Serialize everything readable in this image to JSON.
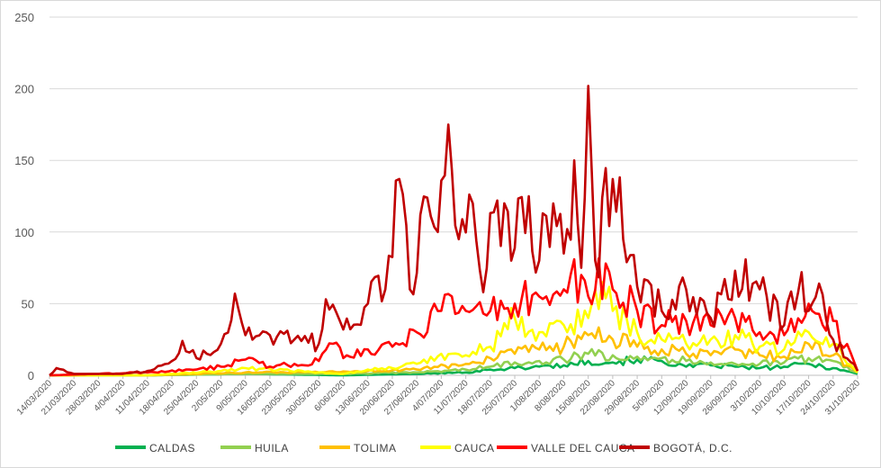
{
  "chart_data": {
    "type": "line",
    "title": "",
    "xlabel": "",
    "ylabel": "",
    "ylim": [
      0,
      250
    ],
    "yticks": [
      0,
      50,
      100,
      150,
      200,
      250
    ],
    "grid": "horizontal",
    "legend_position": "bottom",
    "start_date": "2020-03-14",
    "end_date": "2020-10-31",
    "x_tick_labels": [
      "14/03/2020",
      "21/03/2020",
      "28/03/2020",
      "4/04/2020",
      "11/04/2020",
      "18/04/2020",
      "25/04/2020",
      "2/05/2020",
      "9/05/2020",
      "16/05/2020",
      "23/05/2020",
      "30/05/2020",
      "6/06/2020",
      "13/06/2020",
      "20/06/2020",
      "27/06/2020",
      "4/07/2020",
      "11/07/2020",
      "18/07/2020",
      "25/07/2020",
      "1/08/2020",
      "8/08/2020",
      "15/08/2020",
      "22/08/2020",
      "29/08/2020",
      "5/09/2020",
      "12/09/2020",
      "19/09/2020",
      "26/09/2020",
      "3/10/2020",
      "10/10/2020",
      "17/10/2020",
      "24/10/2020",
      "31/10/2020"
    ],
    "series": [
      {
        "name": "CALDAS",
        "color": "#00b050",
        "points": [
          [
            "2020-03-14",
            0
          ],
          [
            "2020-04-11",
            0
          ],
          [
            "2020-05-09",
            1
          ],
          [
            "2020-06-06",
            0
          ],
          [
            "2020-06-27",
            1
          ],
          [
            "2020-07-11",
            2
          ],
          [
            "2020-07-18",
            4
          ],
          [
            "2020-07-25",
            5
          ],
          [
            "2020-08-01",
            6
          ],
          [
            "2020-08-08",
            7
          ],
          [
            "2020-08-15",
            10
          ],
          [
            "2020-08-22",
            9
          ],
          [
            "2020-08-29",
            11
          ],
          [
            "2020-09-05",
            10
          ],
          [
            "2020-09-12",
            6
          ],
          [
            "2020-09-19",
            7
          ],
          [
            "2020-09-26",
            6
          ],
          [
            "2020-10-03",
            5
          ],
          [
            "2020-10-10",
            6
          ],
          [
            "2020-10-17",
            8
          ],
          [
            "2020-10-24",
            5
          ],
          [
            "2020-10-31",
            1
          ]
        ]
      },
      {
        "name": "HUILA",
        "color": "#92d050",
        "points": [
          [
            "2020-03-14",
            0
          ],
          [
            "2020-04-11",
            0
          ],
          [
            "2020-05-09",
            1
          ],
          [
            "2020-06-06",
            1
          ],
          [
            "2020-06-27",
            2
          ],
          [
            "2020-07-11",
            4
          ],
          [
            "2020-07-18",
            6
          ],
          [
            "2020-07-25",
            9
          ],
          [
            "2020-08-01",
            10
          ],
          [
            "2020-08-08",
            11
          ],
          [
            "2020-08-15",
            15
          ],
          [
            "2020-08-22",
            14
          ],
          [
            "2020-08-29",
            13
          ],
          [
            "2020-09-05",
            12
          ],
          [
            "2020-09-12",
            10
          ],
          [
            "2020-09-19",
            9
          ],
          [
            "2020-09-26",
            8
          ],
          [
            "2020-10-03",
            8
          ],
          [
            "2020-10-10",
            9
          ],
          [
            "2020-10-17",
            12
          ],
          [
            "2020-10-24",
            10
          ],
          [
            "2020-10-31",
            2
          ]
        ]
      },
      {
        "name": "TOLIMA",
        "color": "#ffc000",
        "points": [
          [
            "2020-03-14",
            0
          ],
          [
            "2020-04-11",
            0
          ],
          [
            "2020-04-25",
            1
          ],
          [
            "2020-05-09",
            2
          ],
          [
            "2020-05-30",
            2
          ],
          [
            "2020-06-13",
            3
          ],
          [
            "2020-06-27",
            4
          ],
          [
            "2020-07-11",
            8
          ],
          [
            "2020-07-18",
            12
          ],
          [
            "2020-07-25",
            15
          ],
          [
            "2020-08-01",
            18
          ],
          [
            "2020-08-08",
            20
          ],
          [
            "2020-08-15",
            28
          ],
          [
            "2020-08-22",
            25
          ],
          [
            "2020-08-29",
            20
          ],
          [
            "2020-09-05",
            18
          ],
          [
            "2020-09-12",
            15
          ],
          [
            "2020-09-19",
            14
          ],
          [
            "2020-09-26",
            18
          ],
          [
            "2020-10-03",
            14
          ],
          [
            "2020-10-10",
            13
          ],
          [
            "2020-10-17",
            22
          ],
          [
            "2020-10-24",
            14
          ],
          [
            "2020-10-31",
            2
          ]
        ]
      },
      {
        "name": "CAUCA",
        "color": "#ffff00",
        "points": [
          [
            "2020-03-14",
            0
          ],
          [
            "2020-04-11",
            0
          ],
          [
            "2020-05-02",
            3
          ],
          [
            "2020-05-09",
            5
          ],
          [
            "2020-05-30",
            2
          ],
          [
            "2020-06-06",
            1
          ],
          [
            "2020-06-13",
            4
          ],
          [
            "2020-06-20",
            5
          ],
          [
            "2020-06-27",
            8
          ],
          [
            "2020-07-04",
            15
          ],
          [
            "2020-07-11",
            14
          ],
          [
            "2020-07-18",
            20
          ],
          [
            "2020-07-25",
            40
          ],
          [
            "2020-08-01",
            30
          ],
          [
            "2020-08-08",
            35
          ],
          [
            "2020-08-15",
            40
          ],
          [
            "2020-08-19",
            65
          ],
          [
            "2020-08-22",
            45
          ],
          [
            "2020-08-29",
            30
          ],
          [
            "2020-09-05",
            25
          ],
          [
            "2020-09-12",
            22
          ],
          [
            "2020-09-19",
            25
          ],
          [
            "2020-09-26",
            28
          ],
          [
            "2020-10-03",
            20
          ],
          [
            "2020-10-10",
            18
          ],
          [
            "2020-10-17",
            30
          ],
          [
            "2020-10-24",
            22
          ],
          [
            "2020-10-31",
            2
          ]
        ]
      },
      {
        "name": "VALLE DEL CAUCA",
        "color": "#ff0000",
        "points": [
          [
            "2020-03-14",
            0
          ],
          [
            "2020-03-28",
            1
          ],
          [
            "2020-04-11",
            2
          ],
          [
            "2020-04-25",
            4
          ],
          [
            "2020-05-02",
            6
          ],
          [
            "2020-05-09",
            11
          ],
          [
            "2020-05-16",
            6
          ],
          [
            "2020-05-23",
            8
          ],
          [
            "2020-05-30",
            10
          ],
          [
            "2020-06-03",
            22
          ],
          [
            "2020-06-06",
            12
          ],
          [
            "2020-06-13",
            18
          ],
          [
            "2020-06-20",
            20
          ],
          [
            "2020-06-27",
            30
          ],
          [
            "2020-07-04",
            45
          ],
          [
            "2020-07-11",
            45
          ],
          [
            "2020-07-18",
            45
          ],
          [
            "2020-07-25",
            50
          ],
          [
            "2020-08-01",
            55
          ],
          [
            "2020-08-08",
            60
          ],
          [
            "2020-08-13",
            70
          ],
          [
            "2020-08-15",
            55
          ],
          [
            "2020-08-20",
            78
          ],
          [
            "2020-08-22",
            60
          ],
          [
            "2020-08-29",
            45
          ],
          [
            "2020-09-05",
            35
          ],
          [
            "2020-09-12",
            38
          ],
          [
            "2020-09-19",
            35
          ],
          [
            "2020-09-26",
            40
          ],
          [
            "2020-10-03",
            30
          ],
          [
            "2020-10-10",
            28
          ],
          [
            "2020-10-17",
            50
          ],
          [
            "2020-10-24",
            38
          ],
          [
            "2020-10-31",
            3
          ]
        ]
      },
      {
        "name": "BOGOTÁ, D.C.",
        "color": "#c00000",
        "points": [
          [
            "2020-03-14",
            0
          ],
          [
            "2020-03-16",
            5
          ],
          [
            "2020-03-21",
            1
          ],
          [
            "2020-03-28",
            1
          ],
          [
            "2020-04-04",
            1
          ],
          [
            "2020-04-11",
            3
          ],
          [
            "2020-04-18",
            10
          ],
          [
            "2020-04-21",
            24
          ],
          [
            "2020-04-25",
            12
          ],
          [
            "2020-05-02",
            22
          ],
          [
            "2020-05-06",
            57
          ],
          [
            "2020-05-09",
            28
          ],
          [
            "2020-05-16",
            28
          ],
          [
            "2020-05-23",
            25
          ],
          [
            "2020-05-30",
            22
          ],
          [
            "2020-06-01",
            53
          ],
          [
            "2020-06-06",
            32
          ],
          [
            "2020-06-13",
            50
          ],
          [
            "2020-06-18",
            60
          ],
          [
            "2020-06-22",
            137
          ],
          [
            "2020-06-25",
            60
          ],
          [
            "2020-06-28",
            112
          ],
          [
            "2020-06-30",
            124
          ],
          [
            "2020-07-03",
            100
          ],
          [
            "2020-07-06",
            175
          ],
          [
            "2020-07-09",
            95
          ],
          [
            "2020-07-13",
            120
          ],
          [
            "2020-07-16",
            58
          ],
          [
            "2020-07-20",
            122
          ],
          [
            "2020-07-24",
            80
          ],
          [
            "2020-07-29",
            125
          ],
          [
            "2020-08-01",
            80
          ],
          [
            "2020-08-05",
            120
          ],
          [
            "2020-08-08",
            85
          ],
          [
            "2020-08-11",
            150
          ],
          [
            "2020-08-13",
            75
          ],
          [
            "2020-08-15",
            202
          ],
          [
            "2020-08-17",
            80
          ],
          [
            "2020-08-22",
            137
          ],
          [
            "2020-08-25",
            95
          ],
          [
            "2020-08-29",
            62
          ],
          [
            "2020-09-05",
            45
          ],
          [
            "2020-09-12",
            60
          ],
          [
            "2020-09-19",
            40
          ],
          [
            "2020-09-26",
            73
          ],
          [
            "2020-10-03",
            60
          ],
          [
            "2020-10-10",
            35
          ],
          [
            "2020-10-15",
            72
          ],
          [
            "2020-10-17",
            45
          ],
          [
            "2020-10-20",
            64
          ],
          [
            "2020-10-24",
            25
          ],
          [
            "2020-10-31",
            3
          ]
        ]
      }
    ]
  },
  "legend": [
    {
      "label": "CALDAS",
      "color": "#00b050"
    },
    {
      "label": "HUILA",
      "color": "#92d050"
    },
    {
      "label": "TOLIMA",
      "color": "#ffc000"
    },
    {
      "label": "CAUCA",
      "color": "#ffff00"
    },
    {
      "label": "VALLE DEL CAUCA",
      "color": "#ff0000"
    },
    {
      "label": "BOGOTÁ, D.C.",
      "color": "#c00000"
    }
  ]
}
